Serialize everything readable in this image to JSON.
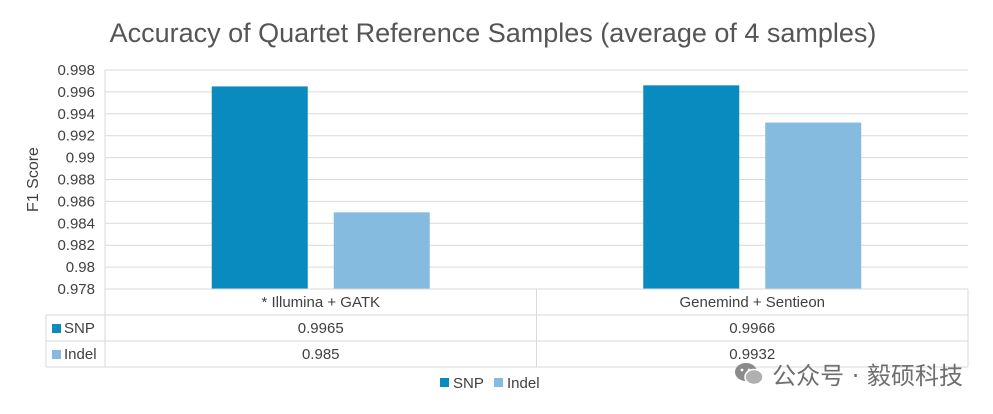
{
  "chart_data": {
    "type": "bar",
    "title": "Accuracy of Quartet Reference Samples (average of 4 samples)",
    "ylabel": "F1 Score",
    "xlabel": "",
    "ylim": [
      0.978,
      0.998
    ],
    "yticks": [
      "0.978",
      "0.98",
      "0.982",
      "0.984",
      "0.986",
      "0.988",
      "0.99",
      "0.992",
      "0.994",
      "0.996",
      "0.998"
    ],
    "grid": true,
    "legend_position": "bottom",
    "categories": [
      "* Illumina + GATK",
      "Genemind + Sentieon"
    ],
    "series": [
      {
        "name": "SNP",
        "color": "#0a8bbf",
        "values": [
          0.9965,
          0.9966
        ],
        "labels": [
          "0.9965",
          "0.9966"
        ]
      },
      {
        "name": "Indel",
        "color": "#86bbe0",
        "values": [
          0.985,
          0.9932
        ],
        "labels": [
          "0.985",
          "0.9932"
        ]
      }
    ]
  },
  "watermark": {
    "text": "公众号 · 毅硕科技"
  }
}
